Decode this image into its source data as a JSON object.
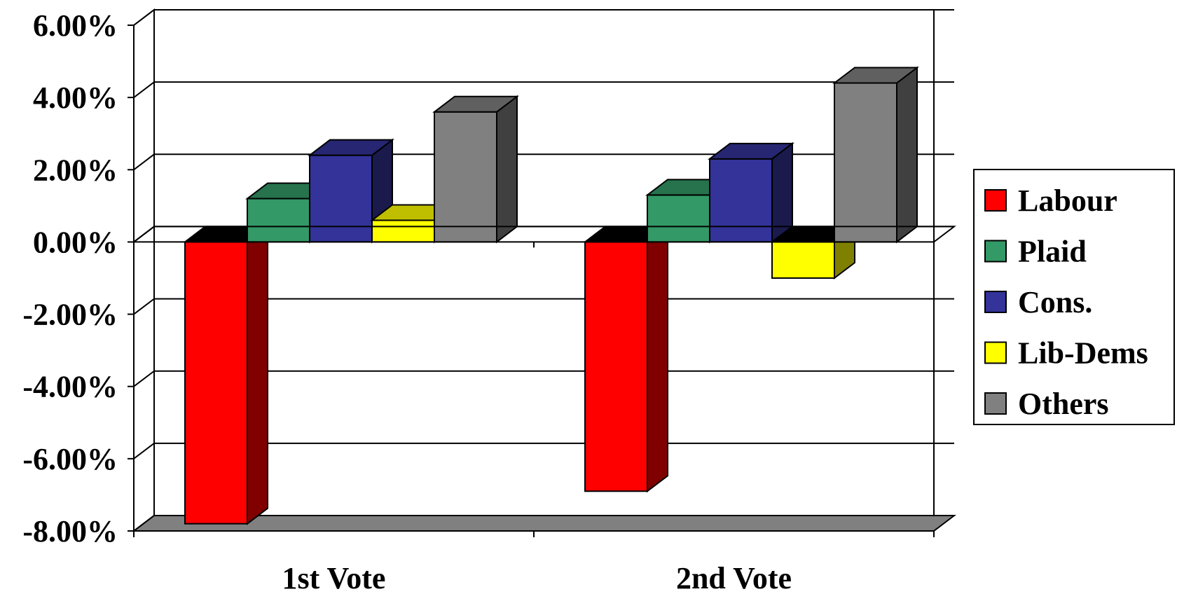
{
  "chart_data": {
    "type": "bar",
    "style": "3d-clustered-column",
    "categories": [
      "1st Vote",
      "2nd Vote"
    ],
    "series": [
      {
        "name": "Labour",
        "values": [
          -7.8,
          -6.9
        ],
        "color": "#ff0000"
      },
      {
        "name": "Plaid",
        "values": [
          1.2,
          1.3
        ],
        "color": "#339966"
      },
      {
        "name": "Cons.",
        "values": [
          2.4,
          2.3
        ],
        "color": "#333399"
      },
      {
        "name": "Lib-Dems",
        "values": [
          0.6,
          -1.0
        ],
        "color": "#ffff00"
      },
      {
        "name": "Others",
        "values": [
          3.6,
          4.4
        ],
        "color": "#808080"
      }
    ],
    "y_ticks": [
      "6.00%",
      "4.00%",
      "2.00%",
      "0.00%",
      "-2.00%",
      "-4.00%",
      "-6.00%",
      "-8.00%"
    ],
    "ylim": [
      -8,
      6
    ],
    "grid": true,
    "legend_position": "right",
    "title": "",
    "xlabel": "",
    "ylabel": ""
  }
}
